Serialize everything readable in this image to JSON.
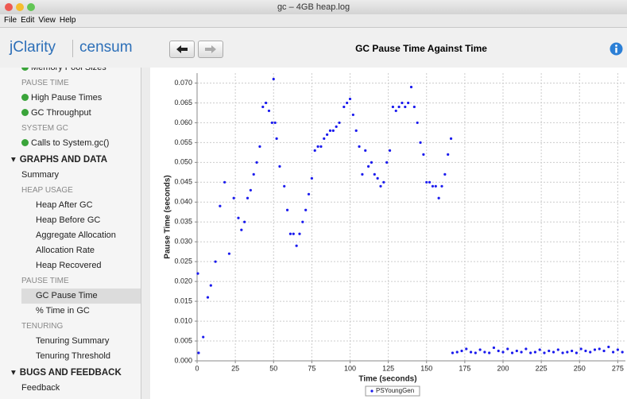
{
  "window": {
    "title": "gc – 4GB heap.log"
  },
  "menu": [
    "File",
    "Edit",
    "View",
    "Help"
  ],
  "header": {
    "brand": "jClarity",
    "product": "censum"
  },
  "sidebar": {
    "items": [
      "Memory Pool Sizes",
      "PAUSE TIME",
      "High Pause Times",
      "GC Throughput",
      "SYSTEM GC",
      "Calls to System.gc()",
      "GRAPHS AND DATA",
      "Summary",
      "HEAP USAGE",
      "Heap After GC",
      "Heap Before GC",
      "Aggregate Allocation",
      "Allocation Rate",
      "Heap Recovered",
      "PAUSE TIME",
      "GC Pause Time",
      "% Time in GC",
      "TENURING",
      "Tenuring Summary",
      "Tenuring Threshold",
      "BUGS AND FEEDBACK",
      "Feedback"
    ]
  },
  "chart_data": {
    "type": "scatter",
    "title": "GC Pause Time Against Time",
    "x_label": "Time (seconds)",
    "y_label": "Pause Time (seconds)",
    "xlim": [
      0,
      280
    ],
    "ylim": [
      0,
      0.0725
    ],
    "xticks": [
      0,
      25,
      50,
      75,
      100,
      125,
      150,
      175,
      200,
      225,
      250,
      275
    ],
    "yticks": [
      {
        "value": 0,
        "label": "0.000"
      },
      {
        "value": 0.005,
        "label": "0.005"
      },
      {
        "value": 0.01,
        "label": "0.010"
      },
      {
        "value": 0.015,
        "label": "0.015"
      },
      {
        "value": 0.02,
        "label": "0.020"
      },
      {
        "value": 0.025,
        "label": "0.025"
      },
      {
        "value": 0.03,
        "label": "0.030"
      },
      {
        "value": 0.035,
        "label": "0.035"
      },
      {
        "value": 0.04,
        "label": "0.040"
      },
      {
        "value": 0.045,
        "label": "0.045"
      },
      {
        "value": 0.05,
        "label": "0.050"
      },
      {
        "value": 0.055,
        "label": "0.055"
      },
      {
        "value": 0.06,
        "label": "0.060"
      },
      {
        "value": 0.065,
        "label": "0.065"
      },
      {
        "value": 0.07,
        "label": "0.070"
      }
    ],
    "grid": true,
    "x": [
      0.5,
      1,
      4,
      7,
      9,
      12,
      15,
      18,
      21,
      24,
      27,
      29,
      31,
      33,
      35,
      37,
      39,
      41,
      43,
      45,
      47,
      49,
      50,
      51,
      52,
      54,
      57,
      59,
      61,
      63,
      65,
      67,
      69,
      71,
      73,
      75,
      77,
      79,
      81,
      83,
      85,
      87,
      89,
      91,
      93,
      96,
      98,
      100,
      102,
      104,
      106,
      108,
      110,
      112,
      114,
      116,
      118,
      120,
      122,
      124,
      126,
      128,
      130,
      132,
      134,
      136,
      138,
      140,
      142,
      144,
      146,
      148,
      150,
      152,
      154,
      156,
      158,
      160,
      162,
      164,
      166,
      167,
      170,
      173,
      176,
      179,
      182,
      185,
      188,
      191,
      194,
      197,
      200,
      203,
      206,
      209,
      212,
      215,
      218,
      221,
      224,
      227,
      230,
      233,
      236,
      239,
      242,
      245,
      248,
      251,
      254,
      257,
      260,
      263,
      266,
      269,
      272,
      275,
      278
    ],
    "series": [
      {
        "name": "PSYoungGen",
        "color": "#1a1aee",
        "values": [
          0.022,
          0.002,
          0.006,
          0.016,
          0.019,
          0.025,
          0.039,
          0.045,
          0.027,
          0.041,
          0.036,
          0.033,
          0.035,
          0.041,
          0.043,
          0.047,
          0.05,
          0.054,
          0.064,
          0.065,
          0.063,
          0.06,
          0.071,
          0.06,
          0.056,
          0.049,
          0.044,
          0.038,
          0.032,
          0.032,
          0.029,
          0.032,
          0.035,
          0.038,
          0.042,
          0.046,
          0.053,
          0.054,
          0.054,
          0.056,
          0.057,
          0.058,
          0.058,
          0.059,
          0.06,
          0.064,
          0.065,
          0.066,
          0.062,
          0.058,
          0.054,
          0.047,
          0.053,
          0.049,
          0.05,
          0.047,
          0.046,
          0.044,
          0.045,
          0.05,
          0.053,
          0.064,
          0.063,
          0.064,
          0.065,
          0.064,
          0.065,
          0.069,
          0.064,
          0.06,
          0.055,
          0.052,
          0.045,
          0.045,
          0.044,
          0.044,
          0.041,
          0.044,
          0.047,
          0.052,
          0.056,
          0.002,
          0.0022,
          0.0025,
          0.003,
          0.0022,
          0.002,
          0.0028,
          0.0022,
          0.002,
          0.0033,
          0.0025,
          0.0022,
          0.003,
          0.002,
          0.0025,
          0.0022,
          0.003,
          0.002,
          0.0022,
          0.0028,
          0.002,
          0.0025,
          0.0022,
          0.0028,
          0.002,
          0.0022,
          0.0025,
          0.002,
          0.003,
          0.0025,
          0.0022,
          0.0028,
          0.003,
          0.0025,
          0.0035,
          0.0022,
          0.0028,
          0.0022
        ]
      }
    ]
  }
}
